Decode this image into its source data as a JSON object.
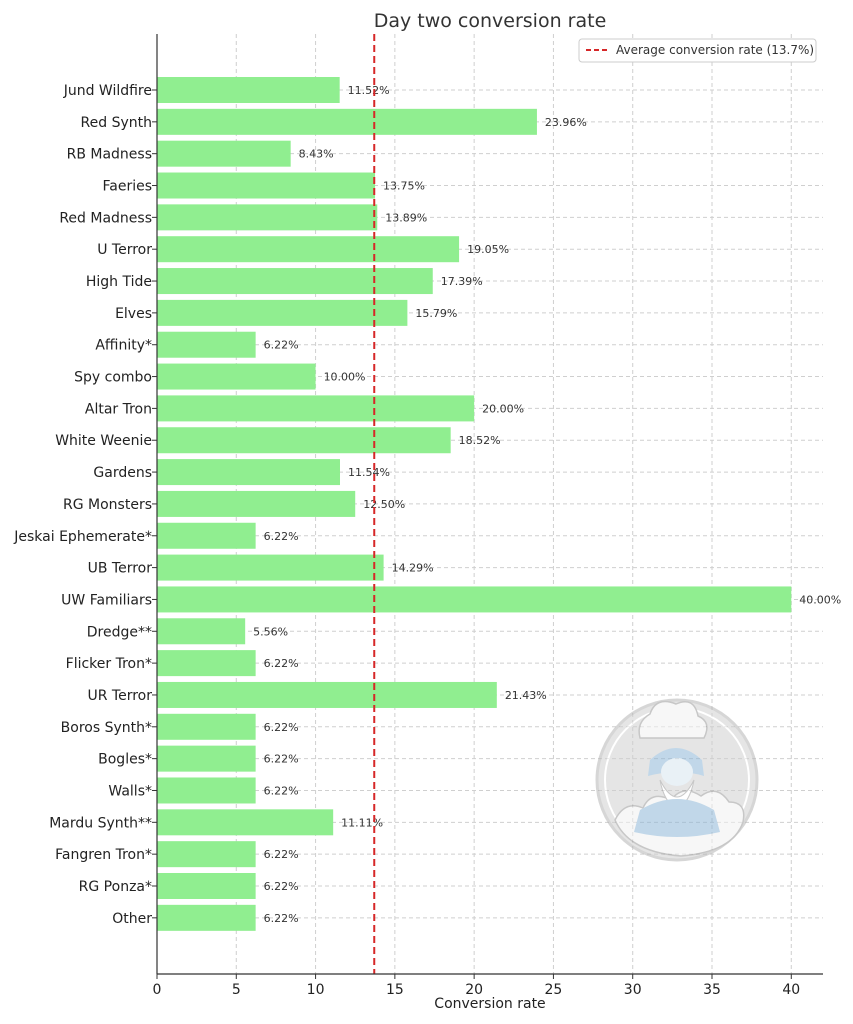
{
  "chart_data": {
    "type": "bar",
    "orientation": "horizontal",
    "title": "Day two conversion rate",
    "xlabel": "Conversion rate",
    "ylabel": "",
    "xlim": [
      0,
      42
    ],
    "xticks": [
      0,
      5,
      10,
      15,
      20,
      25,
      30,
      35,
      40
    ],
    "grid": true,
    "categories": [
      "Jund Wildfire",
      "Red Synth",
      "RB Madness",
      "Faeries",
      "Red Madness",
      "U Terror",
      "High Tide",
      "Elves",
      "Affinity*",
      "Spy combo",
      "Altar Tron",
      "White Weenie",
      "Gardens",
      "RG Monsters",
      "Jeskai Ephemerate*",
      "UB Terror",
      "UW Familiars",
      "Dredge**",
      "Flicker Tron*",
      "UR Terror",
      "Boros Synth*",
      "Bogles*",
      "Walls*",
      "Mardu Synth**",
      "Fangren Tron*",
      "RG Ponza*",
      "Other"
    ],
    "values": [
      11.52,
      23.96,
      8.43,
      13.75,
      13.89,
      19.05,
      17.39,
      15.79,
      6.22,
      10.0,
      20.0,
      18.52,
      11.54,
      12.5,
      6.22,
      14.29,
      40.0,
      5.56,
      6.22,
      21.43,
      6.22,
      6.22,
      6.22,
      11.11,
      6.22,
      6.22,
      6.22
    ],
    "value_labels": [
      "11.52%",
      "23.96%",
      "8.43%",
      "13.75%",
      "13.89%",
      "19.05%",
      "17.39%",
      "15.79%",
      "6.22%",
      "10.00%",
      "20.00%",
      "18.52%",
      "11.54%",
      "12.50%",
      "6.22%",
      "14.29%",
      "40.00%",
      "5.56%",
      "6.22%",
      "21.43%",
      "6.22%",
      "6.22%",
      "6.22%",
      "11.11%",
      "6.22%",
      "6.22%",
      "6.22%"
    ],
    "average": 13.7,
    "legend": {
      "label": "Average conversion rate (13.7%)",
      "placement": "top-right"
    },
    "colors": {
      "bar": "#90ee90",
      "average_line": "#d62728",
      "axis": "#333333"
    }
  },
  "watermark": {
    "name": "bearded-sage-logo"
  }
}
